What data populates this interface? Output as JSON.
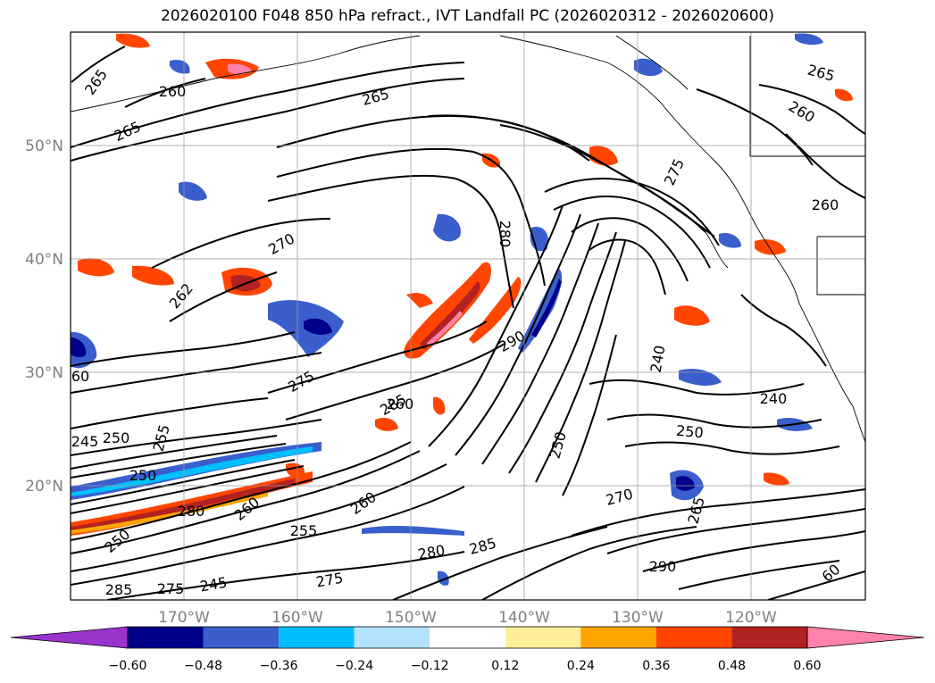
{
  "title": "2026020100 F048 850 hPa refract., IVT Landfall PC (2026020312 - 2026020600)",
  "map": {
    "lat_ticks": [
      "50°N",
      "40°N",
      "30°N",
      "20°N"
    ],
    "lon_ticks": [
      "170°W",
      "160°W",
      "150°W",
      "140°W",
      "130°W",
      "120°W"
    ],
    "contour_labels": [
      "265",
      "260",
      "265",
      "265",
      "265",
      "260",
      "275",
      "260",
      "270",
      "262",
      "280",
      "290",
      "275",
      "285",
      "260",
      "240",
      "250",
      "245",
      "255",
      "250",
      "250",
      "260",
      "280",
      "255",
      "250",
      "270",
      "285",
      "265",
      "280",
      "290",
      "275",
      "275",
      "285",
      "260",
      "245",
      "250",
      "240",
      "60",
      "60"
    ]
  },
  "colorbar": {
    "colors": [
      "#9933cc",
      "#00008b",
      "#3a5fcd",
      "#00bfff",
      "#b2e2ff",
      "#ffffff",
      "#ffee99",
      "#ffa500",
      "#ff4500",
      "#b22222",
      "#ff82ab"
    ],
    "ticks": [
      "−0.60",
      "−0.48",
      "−0.36",
      "−0.24",
      "−0.12",
      "0.12",
      "0.24",
      "0.36",
      "0.48",
      "0.60"
    ]
  }
}
